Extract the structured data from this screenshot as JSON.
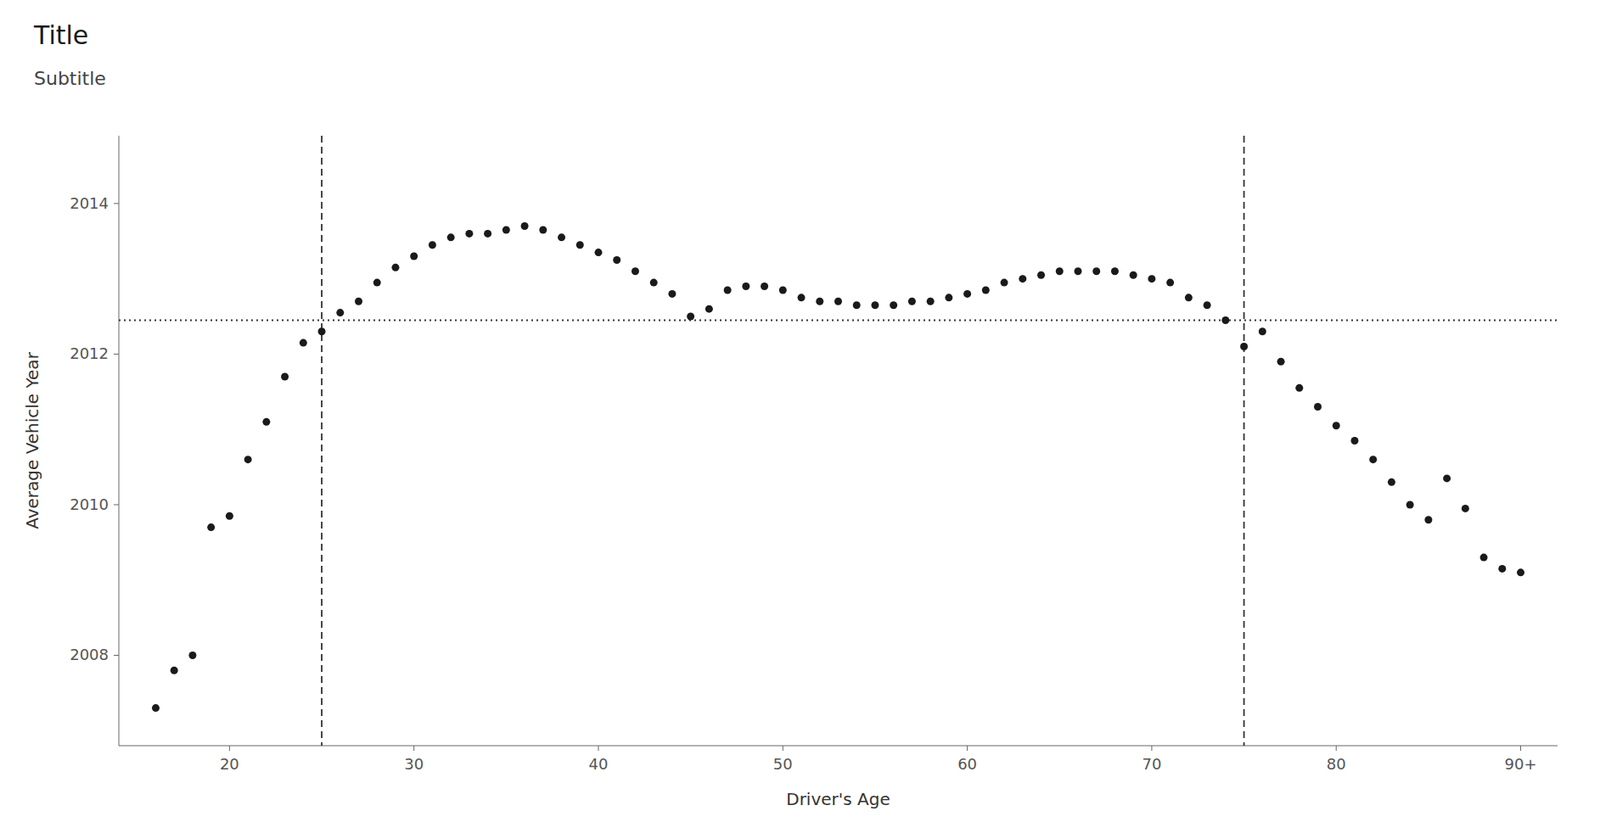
{
  "chart_data": {
    "type": "scatter",
    "title": "Title",
    "subtitle": "Subtitle",
    "x_label": "Driver's Age",
    "y_label": "Average Vehicle Year",
    "color": "#1a1a1a",
    "x": [
      16,
      17,
      18,
      19,
      20,
      21,
      22,
      23,
      24,
      25,
      26,
      27,
      28,
      29,
      30,
      31,
      32,
      33,
      34,
      35,
      36,
      37,
      38,
      39,
      40,
      41,
      42,
      43,
      44,
      45,
      46,
      47,
      48,
      49,
      50,
      51,
      52,
      53,
      54,
      55,
      56,
      57,
      58,
      59,
      60,
      61,
      62,
      63,
      64,
      65,
      66,
      67,
      68,
      69,
      70,
      71,
      72,
      73,
      74,
      75,
      76,
      77,
      78,
      79,
      80,
      81,
      82,
      83,
      84,
      85,
      86,
      87,
      88,
      89,
      90
    ],
    "values": [
      2007.3,
      2007.8,
      2008.0,
      2009.7,
      2009.85,
      2010.6,
      2011.1,
      2011.7,
      2012.15,
      2012.3,
      2012.55,
      2012.7,
      2012.95,
      2013.15,
      2013.3,
      2013.45,
      2013.55,
      2013.6,
      2013.6,
      2013.65,
      2013.7,
      2013.65,
      2013.55,
      2013.45,
      2013.35,
      2013.25,
      2013.1,
      2012.95,
      2012.8,
      2012.5,
      2012.6,
      2012.85,
      2012.9,
      2012.9,
      2012.85,
      2012.75,
      2012.7,
      2012.7,
      2012.65,
      2012.65,
      2012.65,
      2012.7,
      2012.7,
      2012.75,
      2012.8,
      2012.85,
      2012.95,
      2013.0,
      2013.05,
      2013.1,
      2013.1,
      2013.1,
      2013.1,
      2013.05,
      2013.0,
      2012.95,
      2012.75,
      2012.65,
      2012.45,
      2012.1,
      2012.3,
      2011.9,
      2011.55,
      2011.3,
      2011.05,
      2010.85,
      2010.6,
      2010.3,
      2010.0,
      2009.8,
      2010.35,
      2009.95,
      2009.3,
      2009.15,
      2009.1
    ],
    "hline": 2012.45,
    "vlines": [
      25,
      75
    ],
    "xlim": [
      14,
      92
    ],
    "ylim": [
      2006.8,
      2014.9
    ],
    "xticks": [
      20,
      30,
      40,
      50,
      60,
      70,
      80,
      {
        "value": 90,
        "label": "90+"
      }
    ],
    "yticks": [
      2008,
      2010,
      2012,
      2014
    ],
    "grid": false
  }
}
